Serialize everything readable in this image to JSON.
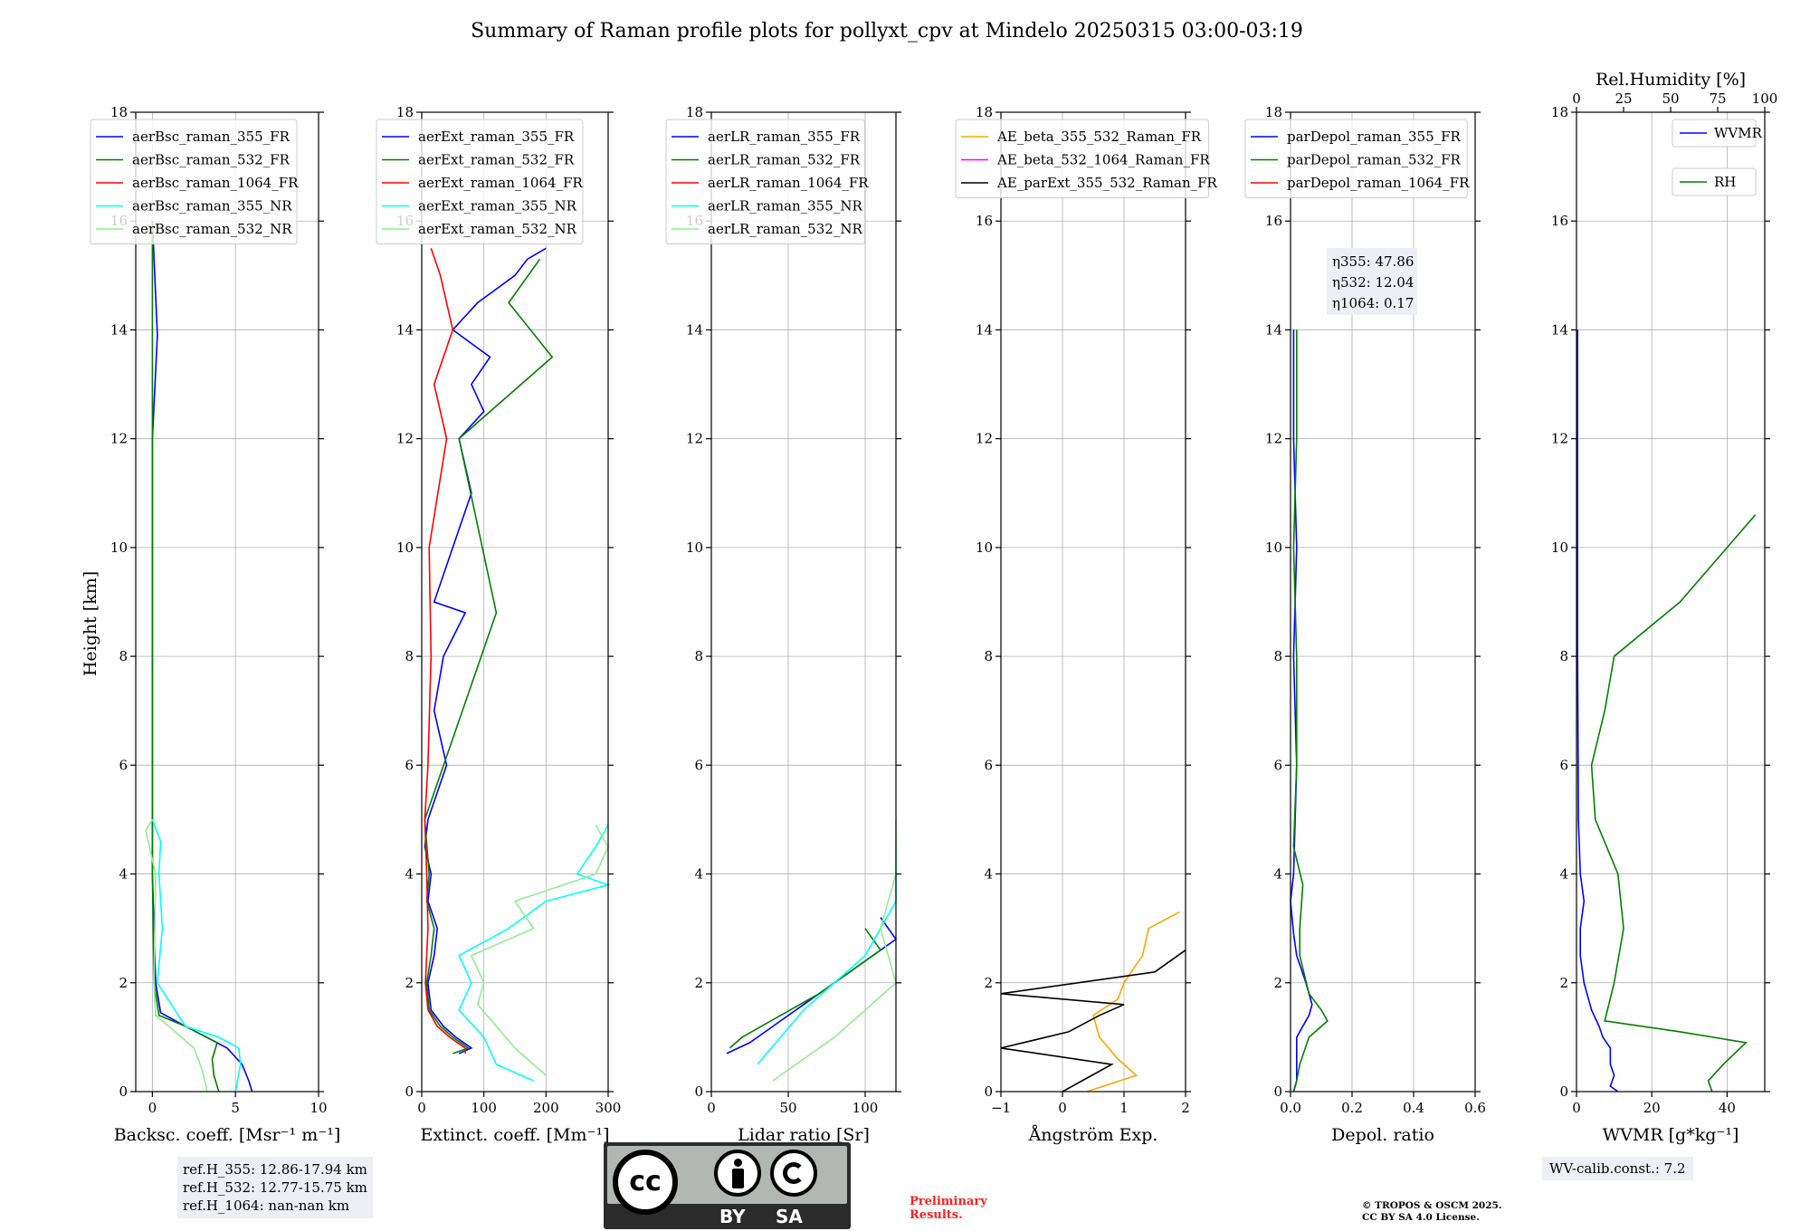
{
  "figure": {
    "title": "Summary of Raman profile plots for pollyxt_cpv at Mindelo 20250315 03:00-03:19",
    "y_label": "Height [km]",
    "ref_lines": [
      "ref.H_355: 12.86-17.94 km",
      "ref.H_532: 12.77-15.75 km",
      "ref.H_1064: nan-nan km"
    ],
    "wv_calib": "WV-calib.const.: 7.2",
    "preliminary": [
      "Preliminary",
      "Results."
    ],
    "copyright": [
      "© TROPOS & OSCM 2025.",
      "CC BY SA 4.0 License."
    ],
    "license_badge": {
      "icon": "cc-by-sa-icon",
      "labels": [
        "BY",
        "SA"
      ],
      "cc_text": "cc"
    }
  },
  "colors": {
    "blue": "#0000ff",
    "green": "#008000",
    "red": "#ff0000",
    "cyan": "#00ffff",
    "lightgreen": "#90ee90",
    "orange": "#ffa500",
    "magenta": "#ff00ff",
    "black": "#000000"
  },
  "chart_data": [
    {
      "type": "line",
      "xlabel": "Backsc. coeff. [Msr$^{-1}$ m$^{-1}$]",
      "xlabel_display": "Backsc. coeff. [Msr⁻¹ m⁻¹]",
      "ylabel": "Height [km]",
      "xlim": [
        -1,
        10
      ],
      "ylim": [
        0,
        18
      ],
      "xticks": [
        0,
        5,
        10
      ],
      "yticks": [
        0,
        2,
        4,
        6,
        8,
        10,
        12,
        14,
        16,
        18
      ],
      "grid": true,
      "legend": "top-left",
      "series": [
        {
          "name": "aerBsc_raman_355_FR",
          "color": "#0000ff",
          "y": [
            0,
            0.2,
            0.5,
            0.8,
            1.2,
            1.45,
            2,
            4,
            6,
            8,
            10,
            12,
            13.9,
            16
          ],
          "x": [
            6,
            5.8,
            5.4,
            4.5,
            2,
            0.5,
            0.2,
            0,
            0,
            0,
            0,
            0,
            0.3,
            0
          ]
        },
        {
          "name": "aerBsc_raman_532_FR",
          "color": "#008000",
          "y": [
            0,
            0.3,
            0.6,
            0.9,
            1.2,
            1.4,
            2,
            4,
            6,
            8,
            10,
            12,
            14,
            16
          ],
          "x": [
            4,
            3.7,
            3.6,
            3.9,
            2,
            0.4,
            0.1,
            0,
            0,
            0,
            0,
            0,
            0,
            0
          ]
        },
        {
          "name": "aerBsc_raman_1064_FR",
          "color": "#ff0000",
          "y": [],
          "x": []
        },
        {
          "name": "aerBsc_raman_355_NR",
          "color": "#00ffff",
          "y": [
            0,
            0.5,
            0.8,
            1.0,
            1.2,
            2,
            3,
            4,
            4.6,
            5
          ],
          "x": [
            5,
            5.3,
            5.2,
            4,
            2,
            0.3,
            0.6,
            0.4,
            0.5,
            0
          ]
        },
        {
          "name": "aerBsc_raman_532_NR",
          "color": "#90ee90",
          "y": [
            0,
            0.4,
            0.8,
            1.2,
            1.4,
            2,
            4,
            4.8,
            5
          ],
          "x": [
            3.3,
            3,
            2.5,
            1,
            0.2,
            0.1,
            0.2,
            -0.4,
            0
          ]
        }
      ]
    },
    {
      "type": "line",
      "xlabel": "Extinct. coeff. [Mm$^{-1}$]",
      "xlabel_display": "Extinct. coeff. [Mm⁻¹]",
      "xlim": [
        0,
        300
      ],
      "ylim": [
        0,
        18
      ],
      "xticks": [
        0,
        100,
        200,
        300
      ],
      "yticks": [
        0,
        2,
        4,
        6,
        8,
        10,
        12,
        14,
        16,
        18
      ],
      "grid": true,
      "legend": "top-left",
      "series": [
        {
          "name": "aerExt_raman_355_FR",
          "color": "#0000ff",
          "y": [
            0.7,
            0.8,
            1.0,
            1.2,
            1.5,
            2,
            2.5,
            3,
            3.5,
            4,
            4.5,
            5,
            6,
            7,
            8,
            8.8,
            9,
            10,
            11,
            12,
            12.5,
            13,
            13.5,
            14,
            14.5,
            15,
            15.3,
            15.5
          ],
          "x": [
            60,
            80,
            55,
            35,
            15,
            10,
            20,
            25,
            10,
            15,
            5,
            10,
            40,
            20,
            35,
            70,
            20,
            50,
            80,
            60,
            100,
            80,
            110,
            50,
            90,
            150,
            170,
            200
          ]
        },
        {
          "name": "aerExt_raman_532_FR",
          "color": "#008000",
          "y": [
            0.7,
            0.8,
            1.0,
            1.2,
            1.5,
            2,
            2.5,
            3,
            3.5,
            4,
            5,
            8.8,
            12,
            13.5,
            14.5,
            15.3
          ],
          "x": [
            50,
            75,
            50,
            30,
            12,
            8,
            15,
            20,
            8,
            12,
            5,
            120,
            60,
            210,
            140,
            190
          ]
        },
        {
          "name": "aerExt_raman_1064_FR",
          "color": "#ff0000",
          "y": [
            0.7,
            0.8,
            1.0,
            1.2,
            1.5,
            2,
            3,
            4,
            5,
            6,
            8,
            10,
            12,
            13,
            14,
            15,
            15.5
          ],
          "x": [
            70,
            70,
            45,
            25,
            10,
            6,
            10,
            8,
            5,
            10,
            15,
            12,
            40,
            20,
            50,
            30,
            15
          ]
        },
        {
          "name": "aerExt_raman_355_NR",
          "color": "#00ffff",
          "y": [
            0.2,
            0.5,
            1.0,
            1.5,
            2,
            2.5,
            3,
            3.5,
            3.8,
            4,
            4.5,
            4.9
          ],
          "x": [
            180,
            120,
            100,
            60,
            80,
            60,
            140,
            200,
            300,
            250,
            280,
            300
          ]
        },
        {
          "name": "aerExt_raman_532_NR",
          "color": "#90ee90",
          "y": [
            0.3,
            0.8,
            1.2,
            1.6,
            2,
            2.5,
            3,
            3.5,
            4,
            4.5,
            4.9
          ],
          "x": [
            200,
            150,
            120,
            90,
            100,
            80,
            180,
            150,
            280,
            300,
            280
          ]
        }
      ]
    },
    {
      "type": "line",
      "xlabel": "Lidar ratio [Sr]",
      "xlim": [
        0,
        120
      ],
      "ylim": [
        0,
        18
      ],
      "xticks": [
        0,
        50,
        100
      ],
      "yticks": [
        0,
        2,
        4,
        6,
        8,
        10,
        12,
        14,
        16,
        18
      ],
      "grid": true,
      "legend": "top-left",
      "series": [
        {
          "name": "aerLR_raman_355_FR",
          "color": "#0000ff",
          "y": [
            0.7,
            0.9,
            1.2,
            1.6,
            2,
            2.4,
            2.8,
            3.2
          ],
          "x": [
            10,
            25,
            40,
            60,
            80,
            100,
            120,
            110
          ]
        },
        {
          "name": "aerLR_raman_532_FR",
          "color": "#008000",
          "y": [
            0.8,
            1.0,
            1.4,
            1.8,
            2.2,
            2.6,
            3.0
          ],
          "x": [
            12,
            20,
            45,
            70,
            90,
            110,
            100
          ]
        },
        {
          "name": "aerLR_raman_1064_FR",
          "color": "#ff0000",
          "y": [],
          "x": []
        },
        {
          "name": "aerLR_raman_355_NR",
          "color": "#00ffff",
          "y": [
            0.5,
            1.5,
            2.5,
            3.5,
            4.5
          ],
          "x": [
            30,
            60,
            100,
            120,
            120
          ]
        },
        {
          "name": "aerLR_raman_532_NR",
          "color": "#90ee90",
          "y": [
            0.2,
            1.0,
            2.0,
            3.0,
            4.0,
            5.0
          ],
          "x": [
            40,
            80,
            120,
            110,
            120,
            120
          ]
        }
      ]
    },
    {
      "type": "line",
      "xlabel": "Ångström Exp.",
      "xlim": [
        -1,
        2
      ],
      "ylim": [
        0,
        18
      ],
      "xticks": [
        -1,
        0,
        1,
        2
      ],
      "yticks": [
        0,
        2,
        4,
        6,
        8,
        10,
        12,
        14,
        16,
        18
      ],
      "grid": true,
      "legend": "top-left",
      "series": [
        {
          "name": "AE_beta_355_532_Raman_FR",
          "color": "#ffa500",
          "y": [
            0,
            0.3,
            0.6,
            1.0,
            1.4,
            1.7,
            2.0,
            2.5,
            3.0,
            3.3
          ],
          "x": [
            0.4,
            1.2,
            0.9,
            0.6,
            0.5,
            0.9,
            1.0,
            1.3,
            1.4,
            1.9
          ]
        },
        {
          "name": "AE_beta_532_1064_Raman_FR",
          "color": "#ff00ff",
          "y": [],
          "x": []
        },
        {
          "name": "AE_parExt_355_532_Raman_FR",
          "color": "#000000",
          "y": [
            0,
            0.5,
            0.8,
            1.1,
            1.4,
            1.6,
            1.8,
            2.2,
            2.6
          ],
          "x": [
            0,
            0.8,
            -1,
            0.1,
            0.6,
            1,
            -1,
            1.5,
            2
          ]
        }
      ]
    },
    {
      "type": "line",
      "xlabel": "Depol. ratio",
      "xlim": [
        0,
        0.6
      ],
      "ylim": [
        0,
        18
      ],
      "xticks": [
        0.0,
        0.2,
        0.4,
        0.6
      ],
      "xtick_labels": [
        "0.0",
        "0.2",
        "0.4",
        "0.6"
      ],
      "yticks": [
        0,
        2,
        4,
        6,
        8,
        10,
        12,
        14,
        16,
        18
      ],
      "grid": true,
      "legend": "top-left",
      "annotations": [
        "η355: 47.86",
        "η532: 12.04",
        "η1064: 0.17"
      ],
      "series": [
        {
          "name": "parDepol_raman_355_FR",
          "color": "#0000ff",
          "y": [
            0,
            0.2,
            0.5,
            1.0,
            1.4,
            1.6,
            2.0,
            2.5,
            2.9,
            3.5,
            4,
            6,
            8,
            10,
            12,
            14
          ],
          "x": [
            0.01,
            0.02,
            0.02,
            0.02,
            0.06,
            0.07,
            0.05,
            0.02,
            0.01,
            0.0,
            0.01,
            0.02,
            0.01,
            0.02,
            0.01,
            0.01
          ]
        },
        {
          "name": "parDepol_raman_532_FR",
          "color": "#008000",
          "y": [
            0,
            0.2,
            0.5,
            1.0,
            1.3,
            1.5,
            1.8,
            2.5,
            3.0,
            3.8,
            4.5,
            6,
            8,
            10,
            12,
            14
          ],
          "x": [
            0.01,
            0.02,
            0.03,
            0.06,
            0.12,
            0.1,
            0.06,
            0.03,
            0.03,
            0.04,
            0.01,
            0.02,
            0.02,
            0.01,
            0.02,
            0.02
          ]
        },
        {
          "name": "parDepol_raman_1064_FR",
          "color": "#ff0000",
          "y": [],
          "x": []
        }
      ]
    },
    {
      "type": "line",
      "xlabel": "WVMR [$g*kg^{-1}$]",
      "xlabel_display": "WVMR [g*kg⁻¹]",
      "x2label": "Rel.Humidity [%]",
      "xlim": [
        0,
        50
      ],
      "x2lim": [
        0,
        100
      ],
      "ylim": [
        0,
        18
      ],
      "xticks": [
        0,
        20,
        40
      ],
      "x2ticks": [
        0,
        25,
        50,
        75,
        100
      ],
      "yticks": [
        0,
        2,
        4,
        6,
        8,
        10,
        12,
        14,
        16,
        18
      ],
      "grid": true,
      "legend": "top-right",
      "series": [
        {
          "name": "WVMR",
          "color": "#0000ff",
          "axis": "x",
          "y": [
            0,
            0.1,
            0.3,
            0.5,
            0.8,
            1.0,
            1.2,
            1.5,
            2.0,
            2.5,
            3.0,
            3.5,
            4.0,
            5.0,
            8.0,
            10.0,
            14.0
          ],
          "x": [
            11,
            9,
            10,
            9,
            9,
            7,
            6,
            4,
            2,
            1,
            1,
            2,
            1,
            0.5,
            0.3,
            0.3,
            0.3
          ]
        },
        {
          "name": "RH",
          "color": "#008000",
          "axis": "x2",
          "y": [
            0,
            0.2,
            0.5,
            0.9,
            1.1,
            1.3,
            2.0,
            3.0,
            4.0,
            5.0,
            6.0,
            7.0,
            8.0,
            9.0,
            10.0,
            10.6
          ],
          "x": [
            72,
            70,
            78,
            90,
            55,
            15,
            20,
            25,
            22,
            10,
            8,
            15,
            20,
            55,
            80,
            95
          ]
        }
      ]
    }
  ]
}
